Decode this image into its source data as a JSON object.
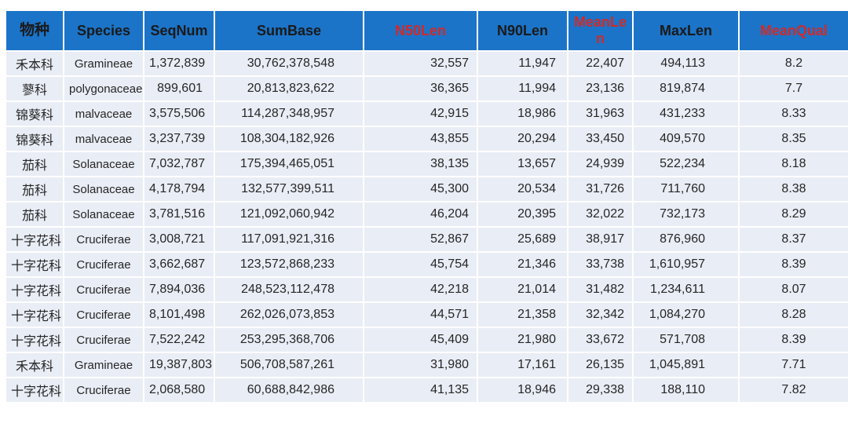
{
  "colors": {
    "header_bg": "#1B74C8",
    "header_text": "#1A1A1A",
    "header_accent_text": "#CE2B2B",
    "row_bg": "#E9EDF5",
    "grid_line": "#FFFFFF",
    "cell_text": "#262626"
  },
  "chart_data": {
    "type": "table",
    "columns": [
      {
        "label": "物种",
        "emphasis": "normal"
      },
      {
        "label": "Species",
        "emphasis": "normal"
      },
      {
        "label": "SeqNum",
        "emphasis": "normal"
      },
      {
        "label": "SumBase",
        "emphasis": "normal"
      },
      {
        "label": "N50Len",
        "emphasis": "red"
      },
      {
        "label": "N90Len",
        "emphasis": "normal"
      },
      {
        "label": "MeanLen",
        "emphasis": "red"
      },
      {
        "label": "MaxLen",
        "emphasis": "normal"
      },
      {
        "label": "MeanQual",
        "emphasis": "red"
      }
    ],
    "rows": [
      [
        "禾本科",
        "Gramineae",
        "1,372,839",
        "30,762,378,548",
        "32,557",
        "11,947",
        "22,407",
        "494,113",
        "8.2"
      ],
      [
        "蓼科",
        "polygonaceae",
        "899,601",
        "20,813,823,622",
        "36,365",
        "11,994",
        "23,136",
        "819,874",
        "7.7"
      ],
      [
        "锦葵科",
        "malvaceae",
        "3,575,506",
        "114,287,348,957",
        "42,915",
        "18,986",
        "31,963",
        "431,233",
        "8.33"
      ],
      [
        "锦葵科",
        "malvaceae",
        "3,237,739",
        "108,304,182,926",
        "43,855",
        "20,294",
        "33,450",
        "409,570",
        "8.35"
      ],
      [
        "茄科",
        "Solanaceae",
        "7,032,787",
        "175,394,465,051",
        "38,135",
        "13,657",
        "24,939",
        "522,234",
        "8.18"
      ],
      [
        "茄科",
        "Solanaceae",
        "4,178,794",
        "132,577,399,511",
        "45,300",
        "20,534",
        "31,726",
        "711,760",
        "8.38"
      ],
      [
        "茄科",
        "Solanaceae",
        "3,781,516",
        "121,092,060,942",
        "46,204",
        "20,395",
        "32,022",
        "732,173",
        "8.29"
      ],
      [
        "十字花科",
        "Cruciferae",
        "3,008,721",
        "117,091,921,316",
        "52,867",
        "25,689",
        "38,917",
        "876,960",
        "8.37"
      ],
      [
        "十字花科",
        "Cruciferae",
        "3,662,687",
        "123,572,868,233",
        "45,754",
        "21,346",
        "33,738",
        "1,610,957",
        "8.39"
      ],
      [
        "十字花科",
        "Cruciferae",
        "7,894,036",
        "248,523,112,478",
        "42,218",
        "21,014",
        "31,482",
        "1,234,611",
        "8.07"
      ],
      [
        "十字花科",
        "Cruciferae",
        "8,101,498",
        "262,026,073,853",
        "44,571",
        "21,358",
        "32,342",
        "1,084,270",
        "8.28"
      ],
      [
        "十字花科",
        "Cruciferae",
        "7,522,242",
        "253,295,368,706",
        "45,409",
        "21,980",
        "33,672",
        "571,708",
        "8.39"
      ],
      [
        "禾本科",
        "Gramineae",
        "19,387,803",
        "506,708,587,261",
        "31,980",
        "17,161",
        "26,135",
        "1,045,891",
        "7.71"
      ],
      [
        "十字花科",
        "Cruciferae",
        "2,068,580",
        "60,688,842,986",
        "41,135",
        "18,946",
        "29,338",
        "188,110",
        "7.82"
      ]
    ]
  }
}
